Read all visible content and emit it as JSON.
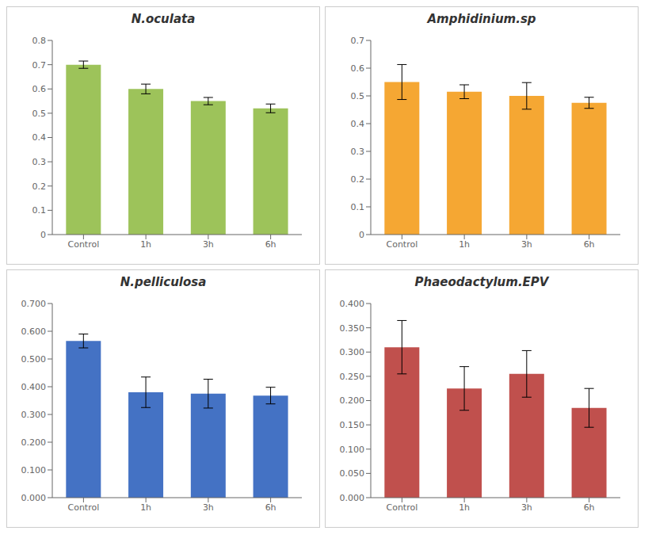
{
  "chart_data": [
    {
      "type": "bar",
      "title": "N.oculata",
      "color": "#9DC35A",
      "categories": [
        "Control",
        "1h",
        "3h",
        "6h"
      ],
      "values": [
        0.7,
        0.6,
        0.55,
        0.52
      ],
      "errors": [
        0.015,
        0.02,
        0.015,
        0.018
      ],
      "ylim": [
        0,
        0.8
      ],
      "yticks": [
        0,
        0.1,
        0.2,
        0.3,
        0.4,
        0.5,
        0.6,
        0.7,
        0.8
      ],
      "grid": false
    },
    {
      "type": "bar",
      "title": "Amphidinium.sp",
      "color": "#F5A733",
      "categories": [
        "Control",
        "1h",
        "3h",
        "6h"
      ],
      "values": [
        0.55,
        0.515,
        0.5,
        0.475
      ],
      "errors": [
        0.063,
        0.025,
        0.048,
        0.02
      ],
      "ylim": [
        0,
        0.7
      ],
      "yticks": [
        0,
        0.1,
        0.2,
        0.3,
        0.4,
        0.5,
        0.6,
        0.7
      ],
      "grid": false
    },
    {
      "type": "bar",
      "title": "N.pelliculosa",
      "color": "#4472C4",
      "categories": [
        "Control",
        "1h",
        "3h",
        "6h"
      ],
      "values": [
        0.565,
        0.38,
        0.375,
        0.368
      ],
      "errors": [
        0.025,
        0.055,
        0.052,
        0.03
      ],
      "ylim": [
        0,
        0.7
      ],
      "yticks": [
        {
          "value": 0,
          "label": "0.000"
        },
        {
          "value": 0.1,
          "label": "0.100"
        },
        {
          "value": 0.2,
          "label": "0.200"
        },
        {
          "value": 0.3,
          "label": "0.300"
        },
        {
          "value": 0.4,
          "label": "0.400"
        },
        {
          "value": 0.5,
          "label": "0.500"
        },
        {
          "value": 0.6,
          "label": "0.600"
        },
        {
          "value": 0.7,
          "label": "0.700"
        }
      ],
      "grid": false
    },
    {
      "type": "bar",
      "title": "Phaeodactylum.EPV",
      "color": "#C0504D",
      "categories": [
        "Control",
        "1h",
        "3h",
        "6h"
      ],
      "values": [
        0.31,
        0.225,
        0.255,
        0.185
      ],
      "errors": [
        0.055,
        0.045,
        0.048,
        0.04
      ],
      "ylim": [
        0,
        0.4
      ],
      "yticks": [
        {
          "value": 0,
          "label": "0.000"
        },
        {
          "value": 0.05,
          "label": "0.050"
        },
        {
          "value": 0.1,
          "label": "0.100"
        },
        {
          "value": 0.15,
          "label": "0.150"
        },
        {
          "value": 0.2,
          "label": "0.200"
        },
        {
          "value": 0.25,
          "label": "0.250"
        },
        {
          "value": 0.3,
          "label": "0.300"
        },
        {
          "value": 0.35,
          "label": "0.350"
        },
        {
          "value": 0.4,
          "label": "0.400"
        }
      ],
      "grid": false
    }
  ]
}
